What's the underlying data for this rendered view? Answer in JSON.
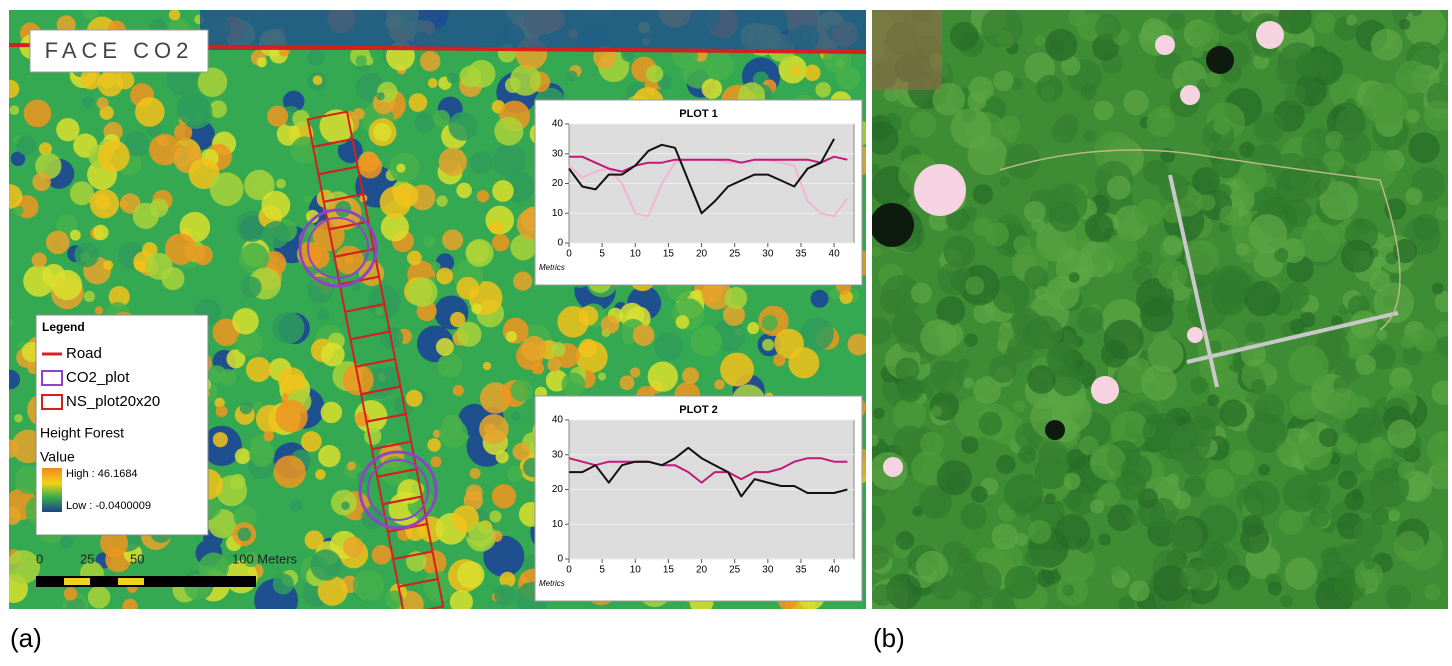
{
  "map_a": {
    "title": "FACE CO2",
    "legend": {
      "title": "Legend",
      "items": [
        "Road",
        "CO2_plot",
        "NS_plot20x20"
      ],
      "layer": "Height Forest",
      "field": "Value",
      "high": "High : 46.1684",
      "low": "Low : -0.0400009"
    },
    "scale_bar": [
      "0",
      "25",
      "50",
      "100 Meters"
    ]
  },
  "chart_data": [
    {
      "type": "line",
      "title": "PLOT 1",
      "x_label": "Metrics",
      "x": [
        0,
        2,
        4,
        6,
        8,
        10,
        12,
        14,
        16,
        18,
        20,
        22,
        24,
        26,
        28,
        30,
        32,
        34,
        36,
        38,
        40,
        42
      ],
      "series": [
        {
          "color": "#f4b3d3",
          "values": [
            26,
            22,
            24,
            25,
            20,
            10,
            9,
            20,
            27,
            28,
            28,
            28,
            27,
            27,
            28,
            28,
            27,
            26,
            14,
            10,
            9,
            15
          ]
        },
        {
          "color": "#c2187a",
          "values": [
            29,
            29,
            27,
            25,
            24,
            26,
            27,
            27,
            28,
            28,
            28,
            28,
            28,
            27,
            28,
            28,
            28,
            28,
            28,
            27,
            29,
            28
          ]
        },
        {
          "color": "#111111",
          "values": [
            25,
            19,
            18,
            23,
            23,
            26,
            31,
            33,
            32,
            21,
            10,
            14,
            19,
            21,
            23,
            23,
            21,
            19,
            25,
            27,
            35,
            null
          ]
        }
      ],
      "xlim": [
        0,
        43
      ],
      "ylim": [
        0,
        40
      ],
      "xticks": [
        0,
        5,
        10,
        15,
        20,
        25,
        30,
        35,
        40
      ],
      "yticks": [
        0,
        10,
        20,
        30,
        40
      ],
      "grid": true
    },
    {
      "type": "line",
      "title": "PLOT 2",
      "x_label": "Metrics",
      "x": [
        0,
        2,
        4,
        6,
        8,
        10,
        12,
        14,
        16,
        18,
        20,
        22,
        24,
        26,
        28,
        30,
        32,
        34,
        36,
        38,
        40,
        42
      ],
      "series": [
        {
          "color": "#c2187a",
          "values": [
            29,
            28,
            27,
            28,
            28,
            28,
            28,
            27,
            27,
            25,
            22,
            25,
            25,
            23,
            25,
            25,
            26,
            28,
            29,
            29,
            28,
            28
          ]
        },
        {
          "color": "#111111",
          "values": [
            25,
            25,
            27,
            22,
            27,
            28,
            28,
            27,
            29,
            32,
            29,
            27,
            25,
            18,
            23,
            22,
            21,
            21,
            19,
            19,
            19,
            20
          ]
        }
      ],
      "xlim": [
        0,
        43
      ],
      "ylim": [
        0,
        40
      ],
      "xticks": [
        0,
        5,
        10,
        15,
        20,
        25,
        30,
        35,
        40
      ],
      "yticks": [
        0,
        10,
        20,
        30,
        40
      ],
      "grid": true
    }
  ],
  "panel_labels": [
    "(a)",
    "(b)"
  ]
}
